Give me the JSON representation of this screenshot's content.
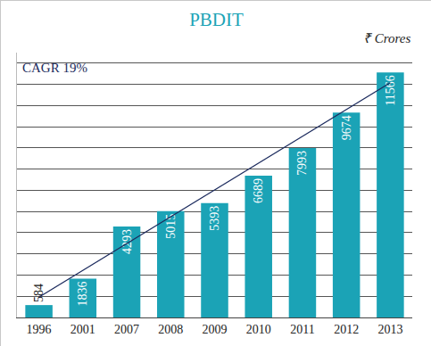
{
  "chart_data": {
    "type": "bar",
    "title": "PBDIT",
    "ylabel": "₹ Crores",
    "annotations": [
      {
        "text": "CAGR 19%"
      }
    ],
    "categories": [
      "1996",
      "2001",
      "2007",
      "2008",
      "2009",
      "2010",
      "2011",
      "2012",
      "2013"
    ],
    "series": [
      {
        "type": "bar",
        "color": "#1ba3b6",
        "values": [
          584,
          1836,
          4293,
          5015,
          5393,
          6689,
          7993,
          9674,
          11566
        ]
      },
      {
        "type": "line",
        "color": "#1c2b5e",
        "values": [
          960,
          2225,
          3490,
          4755,
          6020,
          7285,
          8550,
          9815,
          11080
        ]
      }
    ],
    "ylim": [
      0,
      12500
    ],
    "yticks": [
      0,
      1000,
      2000,
      3000,
      4000,
      5000,
      6000,
      7000,
      8000,
      9000,
      10000,
      11000,
      12000
    ],
    "grid": true,
    "data_labels": true,
    "tick_labels": "x"
  }
}
